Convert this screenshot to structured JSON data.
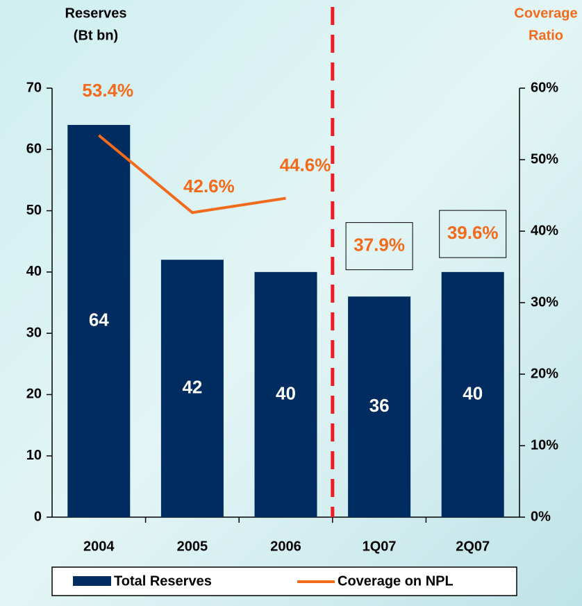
{
  "chart_data": {
    "type": "bar_line",
    "y_label": [
      "Reserves",
      "(Bt bn)"
    ],
    "y2_label": [
      "Coverage",
      "Ratio"
    ],
    "categories": [
      "2004",
      "2005",
      "2006",
      "1Q07",
      "2Q07"
    ],
    "series": [
      {
        "name": "Total Reserves",
        "type": "bar",
        "color": "#002c5f",
        "values": [
          64,
          42,
          40,
          36,
          40
        ]
      },
      {
        "name": "Coverage on NPL",
        "type": "line",
        "axis": "y2",
        "color": "#f26b1d",
        "values": [
          53.4,
          42.6,
          44.6,
          37.9,
          39.6
        ],
        "value_labels": [
          "53.4%",
          "42.6%",
          "44.6%",
          "37.9%",
          "39.6%"
        ]
      }
    ],
    "divider_after": 2,
    "divider_color": "#ee1c25",
    "ylim": [
      0,
      70
    ],
    "yticks": [
      0,
      10,
      20,
      30,
      40,
      50,
      60,
      70
    ],
    "y2lim": [
      0,
      60
    ],
    "y2ticks": [
      {
        "value": 0,
        "label": "0%"
      },
      {
        "value": 10,
        "label": "10%"
      },
      {
        "value": 20,
        "label": "20%"
      },
      {
        "value": 30,
        "label": "30%"
      },
      {
        "value": 40,
        "label": "40%"
      },
      {
        "value": 50,
        "label": "50%"
      },
      {
        "value": 60,
        "label": "60%"
      }
    ],
    "legend": "bottom"
  }
}
